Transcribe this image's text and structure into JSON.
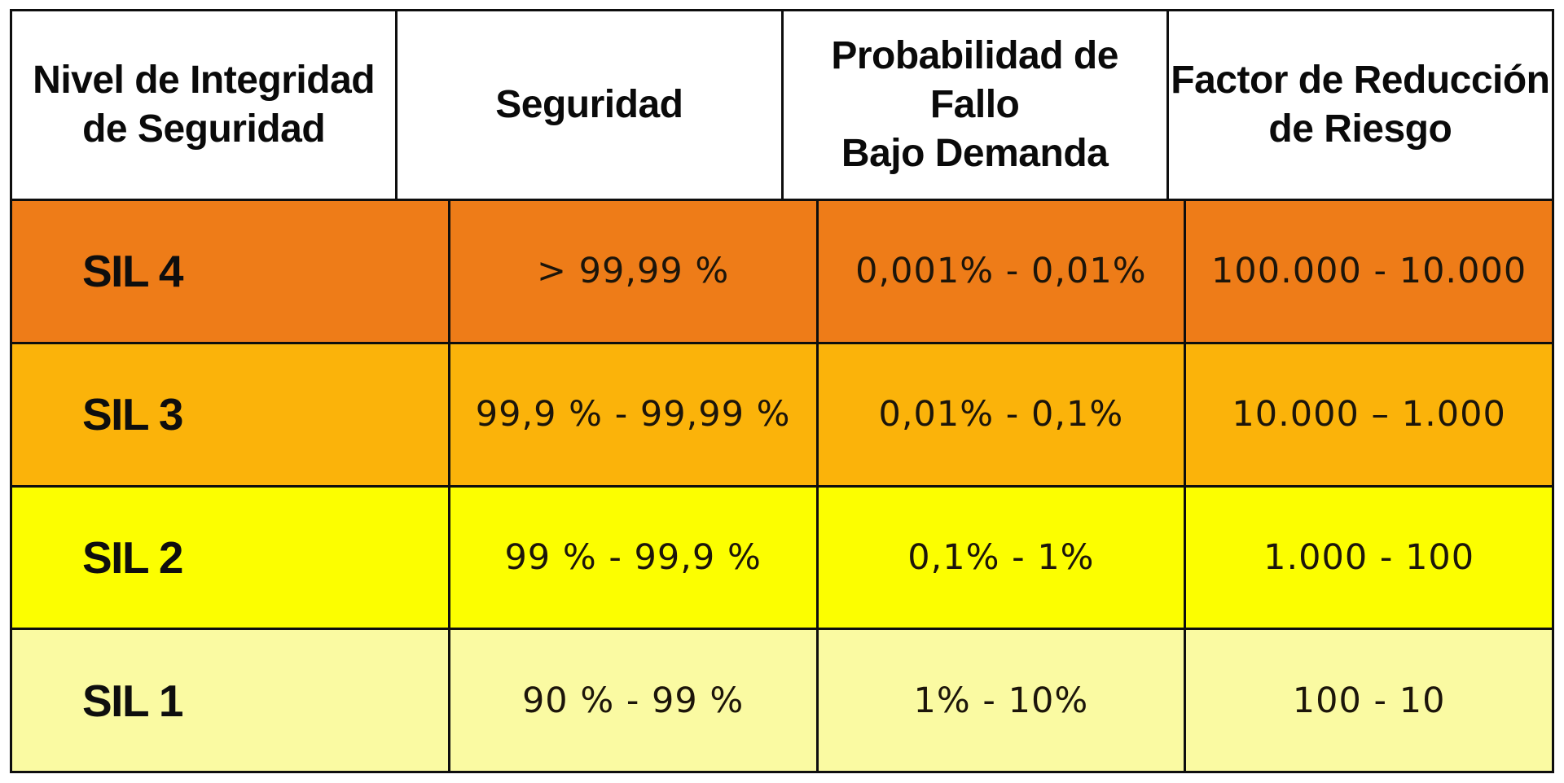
{
  "page": {
    "background": "#ffffff",
    "grid_color": "#0e0e0e"
  },
  "table": {
    "headers": [
      {
        "id": "nivel",
        "label": "Nivel de Integridad\nde Seguridad"
      },
      {
        "id": "seguridad",
        "label": "Seguridad"
      },
      {
        "id": "pfd",
        "label": "Probabilidad de Fallo\nBajo Demanda"
      },
      {
        "id": "frr",
        "label": "Factor de Reducción\nde Riesgo"
      }
    ],
    "rows": [
      {
        "level": "SIL 4",
        "seguridad": "> 99,99 %",
        "pfd": "0,001% - 0,01%",
        "frr": "100.000 - 10.000",
        "bg": "#ee7c18"
      },
      {
        "level": "SIL 3",
        "seguridad": "99,9 % - 99,99 %",
        "pfd": "0,01% - 0,1%",
        "frr": "10.000 – 1.000",
        "bg": "#fbb30a"
      },
      {
        "level": "SIL 2",
        "seguridad": "99 % - 99,9 %",
        "pfd": "0,1% - 1%",
        "frr": "1.000 - 100",
        "bg": "#fcfe00"
      },
      {
        "level": "SIL 1",
        "seguridad": "90 % - 99 %",
        "pfd": "1% - 10%",
        "frr": "100 - 10",
        "bg": "#fafaa2"
      }
    ]
  },
  "chart_data": {
    "type": "table",
    "title": "",
    "columns": [
      "Nivel de Integridad de Seguridad",
      "Seguridad",
      "Probabilidad de Fallo Bajo Demanda",
      "Factor de Reducción de Riesgo"
    ],
    "rows": [
      [
        "SIL 4",
        "> 99,99 %",
        "0,001% - 0,01%",
        "100.000 - 10.000"
      ],
      [
        "SIL 3",
        "99,9 % - 99,99 %",
        "0,01% - 0,1%",
        "10.000 – 1.000"
      ],
      [
        "SIL 2",
        "99 % - 99,9 %",
        "0,1% - 1%",
        "1.000 - 100"
      ],
      [
        "SIL 1",
        "90 % - 99 %",
        "1% - 10%",
        "100 - 10"
      ]
    ],
    "row_colors": [
      "#ee7c18",
      "#fbb30a",
      "#fcfe00",
      "#fafaa2"
    ],
    "header_background": "#ffffff",
    "grid": true,
    "grid_color": "#0e0e0e"
  }
}
